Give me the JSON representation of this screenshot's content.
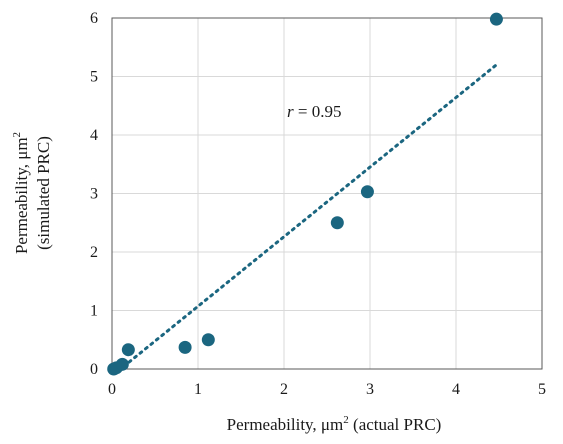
{
  "chart_data": {
    "type": "scatter",
    "title": "",
    "xlabel_main": "Permeability, μm",
    "xlabel_sup": "2",
    "xlabel_tail": " (actual PRC)",
    "ylabel_line1_main": "Permeability, μm",
    "ylabel_line1_sup": "2",
    "ylabel_line2": "(simulated PRC)",
    "xlim": [
      0,
      5
    ],
    "ylim": [
      0,
      6
    ],
    "xticks": [
      0,
      1,
      2,
      3,
      4,
      5
    ],
    "yticks": [
      0,
      1,
      2,
      3,
      4,
      5,
      6
    ],
    "xtick_labels": [
      "0",
      "1",
      "2",
      "3",
      "4",
      "5"
    ],
    "ytick_labels": [
      "0",
      "1",
      "2",
      "3",
      "4",
      "5",
      "6"
    ],
    "grid": true,
    "legend": "none",
    "points": [
      {
        "x": 0.02,
        "y": 0.0
      },
      {
        "x": 0.05,
        "y": 0.02
      },
      {
        "x": 0.12,
        "y": 0.08
      },
      {
        "x": 0.19,
        "y": 0.33
      },
      {
        "x": 0.85,
        "y": 0.37
      },
      {
        "x": 1.12,
        "y": 0.5
      },
      {
        "x": 2.62,
        "y": 2.5
      },
      {
        "x": 2.97,
        "y": 3.03
      },
      {
        "x": 4.47,
        "y": 5.98
      }
    ],
    "trendline": {
      "x": [
        0.2,
        4.47
      ],
      "y": [
        0.12,
        5.2
      ],
      "style": "dotted"
    },
    "annotation_r_symbol": "r",
    "annotation_r_value": " = 0.95",
    "colors": {
      "marker": "#1b6680",
      "trendline": "#1b6680",
      "grid": "#d9d9d9",
      "frame": "#595959"
    }
  }
}
